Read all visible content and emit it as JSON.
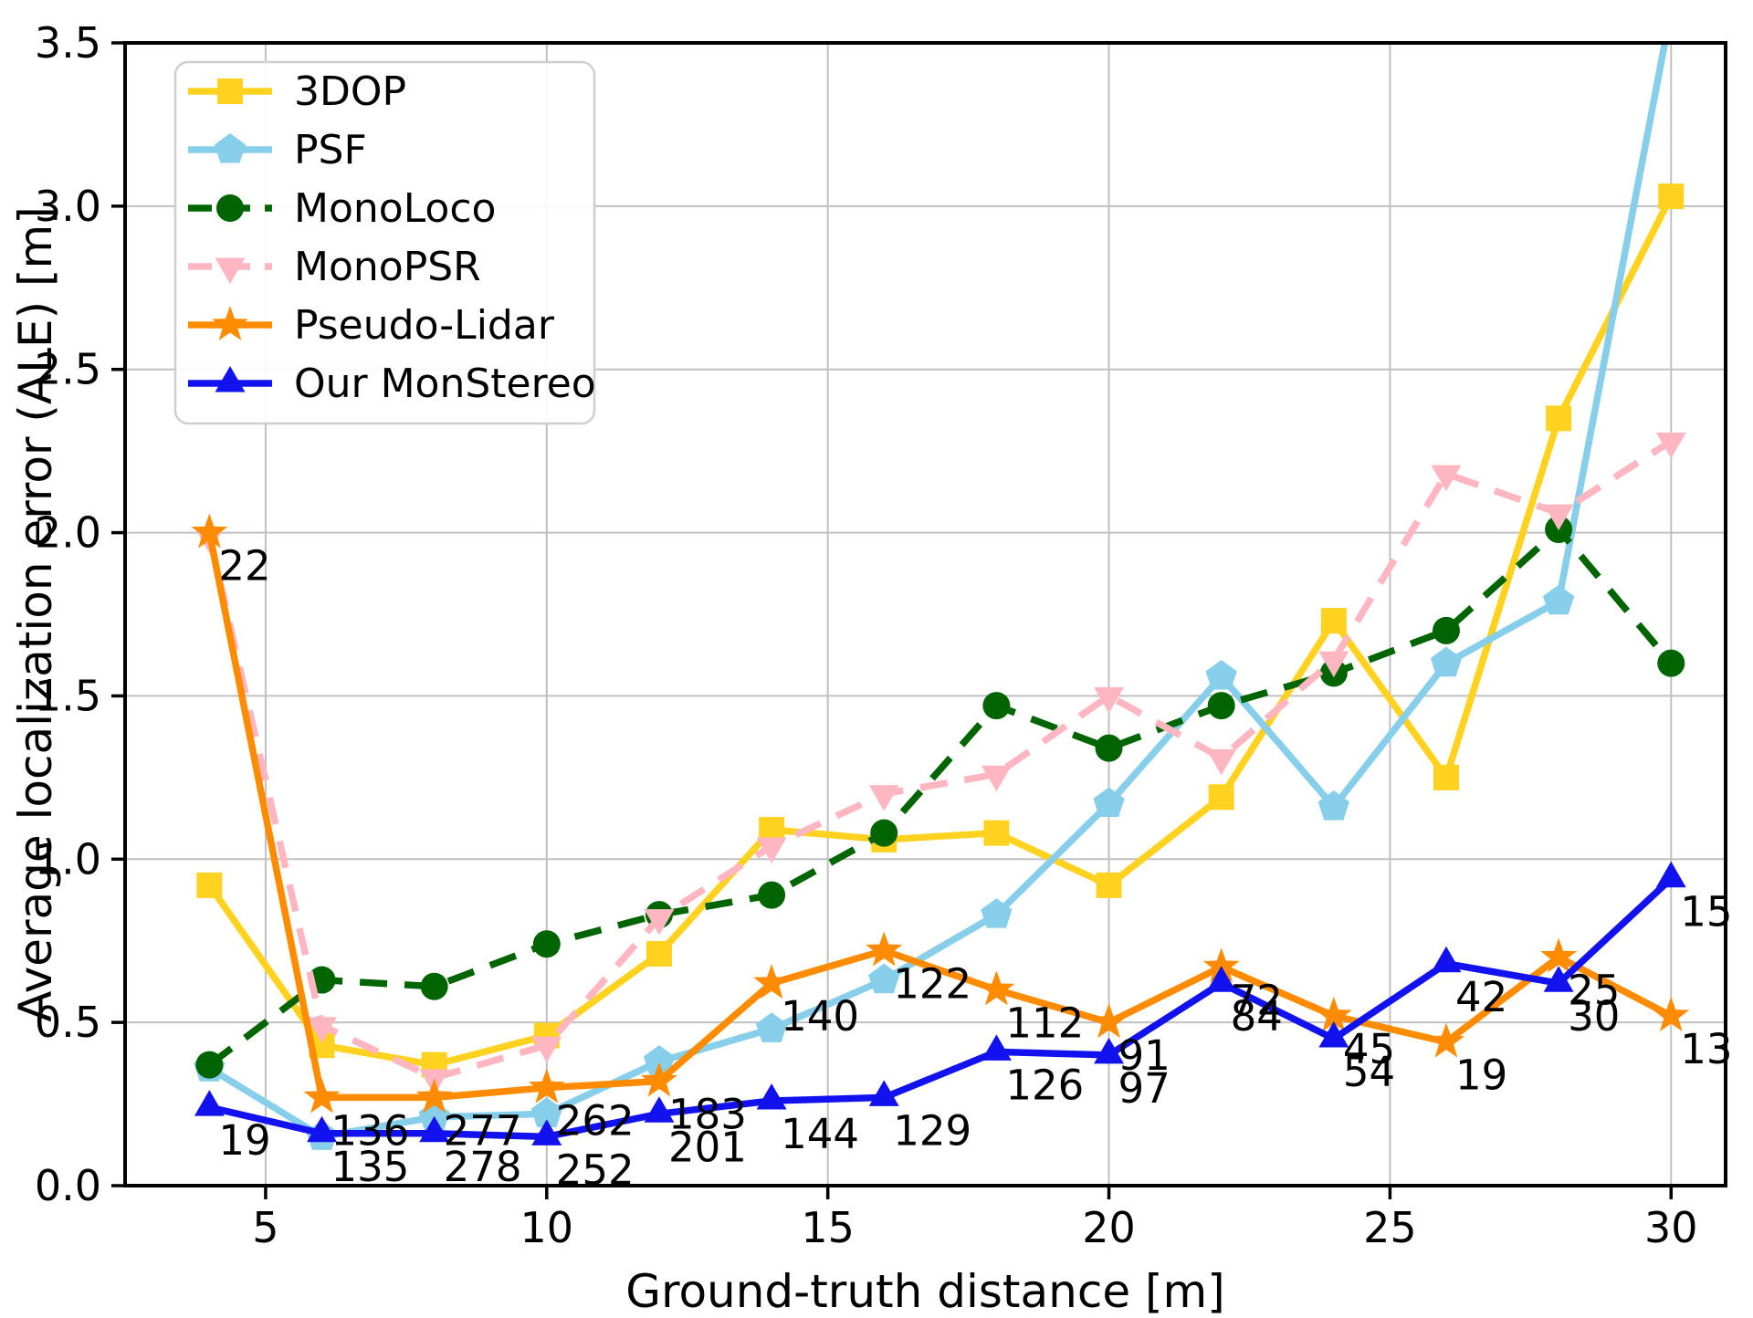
{
  "chart_data": {
    "type": "line",
    "title": "",
    "xlabel": "Ground-truth distance [m]",
    "ylabel": "Average localization error (ALE) [m]",
    "xlim": [
      2.5,
      30.97
    ],
    "ylim": [
      0,
      3.5
    ],
    "xticks": [
      "5",
      "10",
      "15",
      "20",
      "25",
      "30"
    ],
    "yticks": [
      "0.0",
      "0.5",
      "1.0",
      "1.5",
      "2.0",
      "2.5",
      "3.0",
      "3.5"
    ],
    "grid": true,
    "grid_color": "#c0c0c0",
    "legend_position": "upper-left",
    "x": [
      4,
      6,
      8,
      10,
      12,
      14,
      16,
      18,
      20,
      22,
      24,
      26,
      28,
      30
    ],
    "series": [
      {
        "name": "3DOP",
        "color": "#FFD21F",
        "marker": "square",
        "dash": "solid",
        "values": [
          0.92,
          0.43,
          0.37,
          0.46,
          0.71,
          1.09,
          1.06,
          1.08,
          0.92,
          1.19,
          1.73,
          1.25,
          2.35,
          3.03
        ]
      },
      {
        "name": "PSF",
        "color": "#87CEEB",
        "marker": "pentagon",
        "dash": "solid",
        "values": [
          0.36,
          0.15,
          0.21,
          0.22,
          0.38,
          0.48,
          0.63,
          0.83,
          1.17,
          1.56,
          1.16,
          1.6,
          1.79,
          3.6
        ]
      },
      {
        "name": "MonoLoco",
        "color": "#006400",
        "marker": "circle",
        "dash": "dashed",
        "values": [
          0.37,
          0.63,
          0.61,
          0.74,
          0.83,
          0.89,
          1.08,
          1.47,
          1.34,
          1.47,
          1.57,
          1.7,
          2.01,
          1.6
        ]
      },
      {
        "name": "MonoPSR",
        "color": "#FFB6C1",
        "marker": "triangle-down",
        "dash": "dashed",
        "values": [
          1.99,
          0.49,
          0.33,
          0.43,
          0.82,
          1.04,
          1.2,
          1.26,
          1.5,
          1.31,
          1.61,
          2.18,
          2.06,
          2.28
        ]
      },
      {
        "name": "Pseudo-Lidar",
        "color": "#FF8C00",
        "marker": "star",
        "dash": "solid",
        "values": [
          2.0,
          0.27,
          0.27,
          0.3,
          0.32,
          0.62,
          0.72,
          0.6,
          0.5,
          0.67,
          0.52,
          0.44,
          0.7,
          0.52
        ],
        "annotations": [
          "22",
          "136",
          "277",
          "262",
          "183",
          "140",
          "122",
          "112",
          "91",
          "72",
          "45",
          "19",
          "25",
          "13"
        ]
      },
      {
        "name": "Our MonStereo",
        "color": "#1212EF",
        "marker": "triangle-up",
        "dash": "solid",
        "values": [
          0.24,
          0.16,
          0.16,
          0.15,
          0.22,
          0.26,
          0.27,
          0.41,
          0.4,
          0.62,
          0.45,
          0.68,
          0.62,
          0.94
        ],
        "annotations": [
          "19",
          "135",
          "278",
          "252",
          "201",
          "144",
          "129",
          "126",
          "97",
          "84",
          "54",
          "42",
          "30",
          "15"
        ]
      }
    ]
  }
}
